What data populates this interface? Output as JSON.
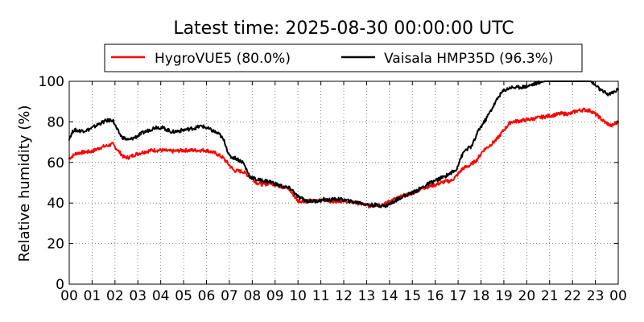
{
  "chart_data": {
    "type": "line",
    "title": "Latest time: 2025-08-30 00:00:00 UTC",
    "xlabel": "",
    "ylabel": "Relative humidity (%)",
    "xlim": [
      0,
      24
    ],
    "ylim": [
      0,
      100
    ],
    "grid": true,
    "legend_position": "top-center",
    "x_ticks": [
      0,
      1,
      2,
      3,
      4,
      5,
      6,
      7,
      8,
      9,
      10,
      11,
      12,
      13,
      14,
      15,
      16,
      17,
      18,
      19,
      20,
      21,
      22,
      23,
      24
    ],
    "x_tick_labels": [
      "00",
      "01",
      "02",
      "03",
      "04",
      "05",
      "06",
      "07",
      "08",
      "09",
      "10",
      "11",
      "12",
      "13",
      "14",
      "15",
      "16",
      "17",
      "18",
      "19",
      "20",
      "21",
      "22",
      "23",
      "00"
    ],
    "y_ticks": [
      0,
      20,
      40,
      60,
      80,
      100
    ],
    "y_tick_labels": [
      "0",
      "20",
      "40",
      "60",
      "80",
      "100"
    ],
    "series": [
      {
        "name": "HygroVUE5",
        "legend_label": "HygroVUE5 (80.0%)",
        "color": "#ff0000",
        "x": [
          0,
          0.3,
          0.6,
          1.0,
          1.4,
          1.9,
          2.2,
          2.4,
          2.6,
          2.9,
          3.2,
          3.6,
          4.0,
          4.5,
          5.0,
          5.5,
          6.0,
          6.4,
          6.7,
          6.9,
          7.2,
          7.6,
          7.9,
          8.2,
          8.5,
          8.8,
          9.0,
          9.3,
          9.6,
          9.8,
          10.0,
          10.4,
          10.8,
          11.1,
          11.3,
          11.6,
          12.0,
          12.4,
          12.8,
          13.1,
          13.4,
          13.8,
          14.0,
          14.5,
          15.0,
          15.5,
          16.0,
          16.4,
          16.7,
          16.9,
          17.2,
          17.5,
          17.8,
          18.1,
          18.4,
          18.7,
          19.0,
          19.3,
          19.7,
          20.0,
          20.5,
          21.0,
          21.5,
          21.9,
          22.2,
          22.5,
          22.8,
          23.1,
          23.4,
          23.7,
          24.0
        ],
        "y": [
          62,
          64.5,
          65,
          65.5,
          67.5,
          69,
          65,
          62.5,
          62.5,
          64,
          65,
          66,
          66,
          65.5,
          66,
          66,
          66,
          64.5,
          62.5,
          60,
          56,
          55.5,
          53,
          50,
          49,
          50,
          49,
          48,
          47,
          44,
          41,
          41,
          41,
          42,
          41,
          41,
          41,
          40.5,
          39.5,
          38.5,
          39,
          39.5,
          41,
          43,
          45,
          47.5,
          49,
          50.5,
          51,
          53,
          57,
          58.5,
          61,
          66,
          68.5,
          71.5,
          76,
          80,
          80.5,
          81,
          82,
          83,
          84,
          84,
          85.5,
          86,
          85.5,
          83,
          80,
          78,
          80
        ]
      },
      {
        "name": "Vaisala HMP35D",
        "legend_label": "Vaisala HMP35D (96.3%)",
        "color": "#000000",
        "x": [
          0,
          0.2,
          0.5,
          0.8,
          1.0,
          1.3,
          1.6,
          1.9,
          2.1,
          2.3,
          2.6,
          2.9,
          3.2,
          3.5,
          3.8,
          4.1,
          4.5,
          5.0,
          5.5,
          5.8,
          6.0,
          6.3,
          6.6,
          6.8,
          7.0,
          7.3,
          7.6,
          7.9,
          8.2,
          8.5,
          8.8,
          9.1,
          9.4,
          9.7,
          10.0,
          10.4,
          10.8,
          11.1,
          11.4,
          11.7,
          12.0,
          12.4,
          12.8,
          13.1,
          13.4,
          13.8,
          14.1,
          14.5,
          15.0,
          15.4,
          15.8,
          16.1,
          16.4,
          16.7,
          16.9,
          17.1,
          17.3,
          17.6,
          17.9,
          18.2,
          18.5,
          18.8,
          19.0,
          19.3,
          19.6,
          20.0,
          20.4,
          20.8,
          21.1,
          21.5,
          21.9,
          22.2,
          22.5,
          22.8,
          23.0,
          23.3,
          23.6,
          24.0
        ],
        "y": [
          72,
          76,
          75.5,
          76,
          77,
          79,
          80.5,
          81,
          76,
          72.5,
          71,
          72.5,
          74.5,
          76,
          77.5,
          77,
          75,
          76,
          77,
          78,
          77,
          75.5,
          73.5,
          70,
          63,
          62,
          60,
          53,
          51.5,
          51,
          50.5,
          49,
          48,
          47,
          43,
          41,
          41,
          41.5,
          41.5,
          42,
          41.5,
          40.5,
          40,
          39,
          39,
          38.5,
          40,
          43,
          45,
          47.5,
          50,
          51.5,
          53,
          55,
          56,
          62,
          66,
          68,
          76,
          81,
          87,
          93,
          95.5,
          97,
          97,
          97.5,
          99,
          100,
          100,
          100,
          100,
          100,
          100,
          100,
          98,
          95,
          93.5,
          96
        ]
      }
    ]
  }
}
